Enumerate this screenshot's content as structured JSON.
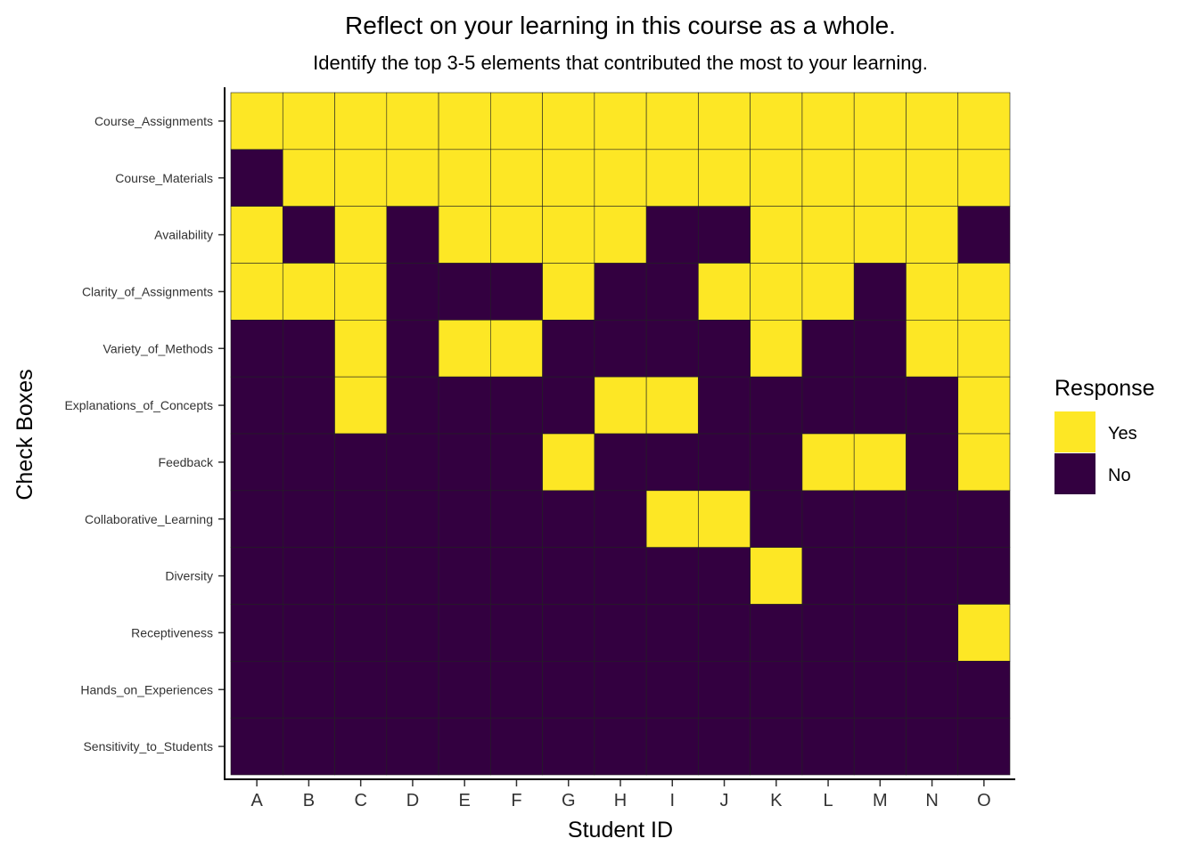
{
  "chart_data": {
    "type": "heatmap",
    "title": "Reflect on your learning in this course as a whole.",
    "subtitle": "Identify the top 3-5 elements that contributed the most to your learning.",
    "xlabel": "Student ID",
    "ylabel": "Check Boxes",
    "x": [
      "A",
      "B",
      "C",
      "D",
      "E",
      "F",
      "G",
      "H",
      "I",
      "J",
      "K",
      "L",
      "M",
      "N",
      "O"
    ],
    "y": [
      "Course_Assignments",
      "Course_Materials",
      "Availability",
      "Clarity_of_Assignments",
      "Variety_of_Methods",
      "Explanations_of_Concepts",
      "Feedback",
      "Collaborative_Learning",
      "Diversity",
      "Receptiveness",
      "Hands_on_Experiences",
      "Sensitivity_to_Students"
    ],
    "values": [
      [
        1,
        1,
        1,
        1,
        1,
        1,
        1,
        1,
        1,
        1,
        1,
        1,
        1,
        1,
        1
      ],
      [
        0,
        1,
        1,
        1,
        1,
        1,
        1,
        1,
        1,
        1,
        1,
        1,
        1,
        1,
        1
      ],
      [
        1,
        0,
        1,
        0,
        1,
        1,
        1,
        1,
        0,
        0,
        1,
        1,
        1,
        1,
        0
      ],
      [
        1,
        1,
        1,
        0,
        0,
        0,
        1,
        0,
        0,
        1,
        1,
        1,
        0,
        1,
        1
      ],
      [
        0,
        0,
        1,
        0,
        1,
        1,
        0,
        0,
        0,
        0,
        1,
        0,
        0,
        1,
        1
      ],
      [
        0,
        0,
        1,
        0,
        0,
        0,
        0,
        1,
        1,
        0,
        0,
        0,
        0,
        0,
        1
      ],
      [
        0,
        0,
        0,
        0,
        0,
        0,
        1,
        0,
        0,
        0,
        0,
        1,
        1,
        0,
        1
      ],
      [
        0,
        0,
        0,
        0,
        0,
        0,
        0,
        0,
        1,
        1,
        0,
        0,
        0,
        0,
        0
      ],
      [
        0,
        0,
        0,
        0,
        0,
        0,
        0,
        0,
        0,
        0,
        1,
        0,
        0,
        0,
        0
      ],
      [
        0,
        0,
        0,
        0,
        0,
        0,
        0,
        0,
        0,
        0,
        0,
        0,
        0,
        0,
        1
      ],
      [
        0,
        0,
        0,
        0,
        0,
        0,
        0,
        0,
        0,
        0,
        0,
        0,
        0,
        0,
        0
      ],
      [
        0,
        0,
        0,
        0,
        0,
        0,
        0,
        0,
        0,
        0,
        0,
        0,
        0,
        0,
        0
      ]
    ],
    "legend": {
      "title": "Response",
      "placement": "right",
      "entries": [
        {
          "label": "Yes",
          "value": 1,
          "color": "#FDE725"
        },
        {
          "label": "No",
          "value": 0,
          "color": "#330040"
        }
      ]
    },
    "colors": {
      "yes": "#FDE725",
      "no": "#330040"
    },
    "grid": false
  }
}
